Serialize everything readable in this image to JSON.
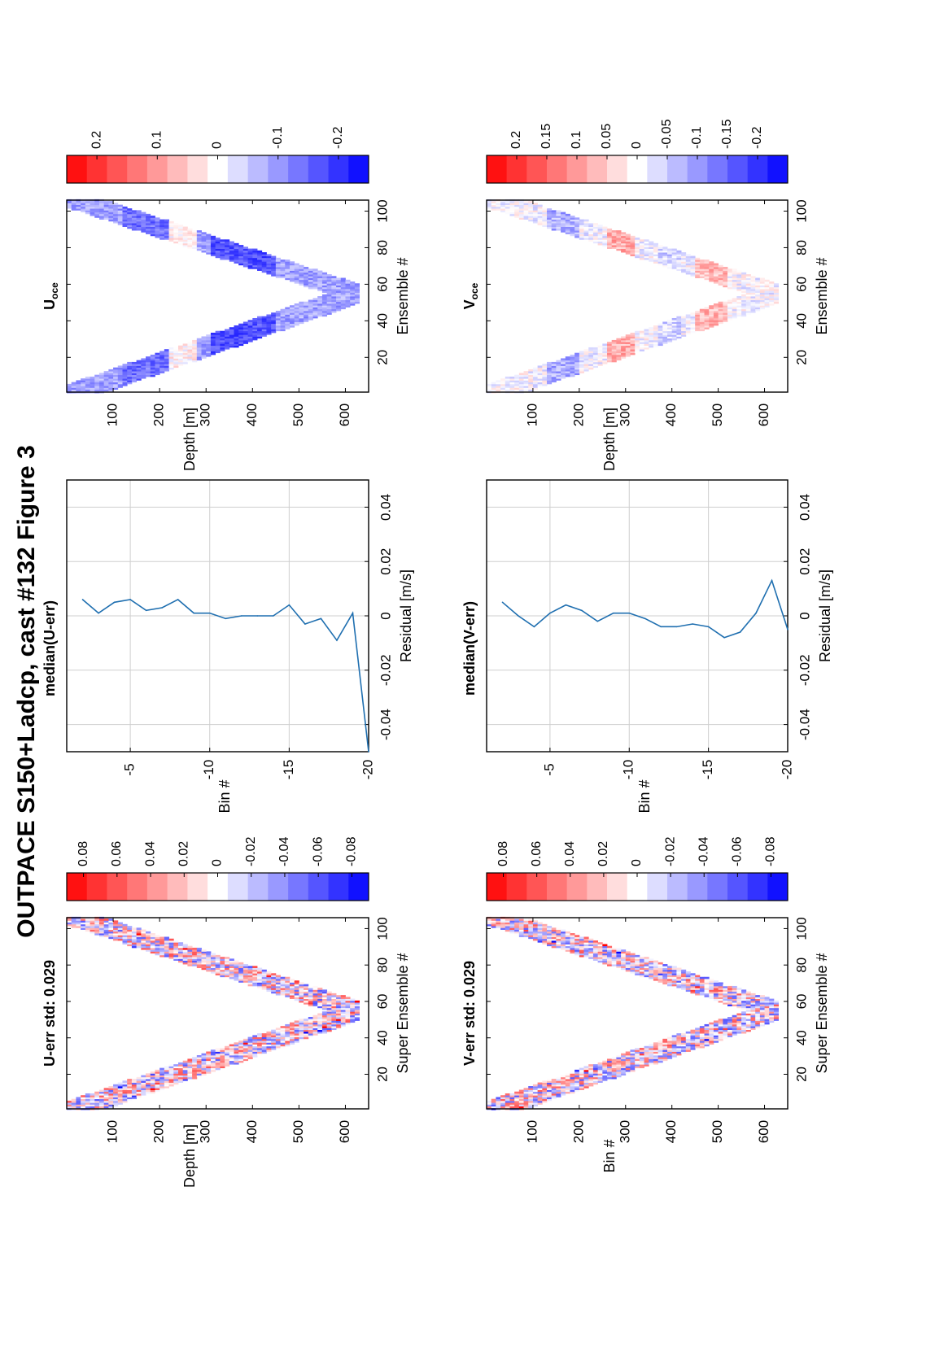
{
  "title": "OUTPACE S150+Ladcp, cast #132  Figure 3",
  "chart_data": [
    {
      "id": "uerr",
      "type": "heatmap",
      "title": "U-err std: 0.029",
      "xlabel": "Super Ensemble #",
      "ylabel": "Depth [m]",
      "xticks": [
        20,
        40,
        60,
        80,
        100
      ],
      "yticks": [
        100,
        200,
        300,
        400,
        500,
        600
      ],
      "xlim": [
        1,
        106
      ],
      "ylim": [
        0,
        650
      ],
      "profile": {
        "start_depth": 20,
        "max_depth": 625,
        "bottom_ensemble": 55,
        "band_width": 120
      },
      "seed": 11,
      "pattern": "noise"
    },
    {
      "id": "ucb",
      "type": "colorbar",
      "ticks": [
        "0.08",
        "0.06",
        "0.04",
        "0.02",
        "0",
        "-0.02",
        "-0.04",
        "-0.06",
        "-0.08"
      ],
      "range": [
        -0.09,
        0.09
      ]
    },
    {
      "id": "umed",
      "type": "line",
      "title": "median(U-err)",
      "xlabel": "Residual [m/s]",
      "ylabel": "Bin #",
      "xticks": [
        "-0.04",
        "-0.02",
        "0",
        "0.02",
        "0.04"
      ],
      "yticks": [
        "-5",
        "-10",
        "-15",
        "-20"
      ],
      "xlim": [
        -0.05,
        0.05
      ],
      "ylim": [
        -20,
        -1
      ],
      "x": [
        0.006,
        0.001,
        0.005,
        0.006,
        0.002,
        0.003,
        0.006,
        0.001,
        0.001,
        -0.001,
        0.0,
        0.0,
        0.0,
        0.004,
        -0.003,
        -0.001,
        -0.009,
        0.001,
        -0.05
      ],
      "y": [
        -2,
        -3,
        -4,
        -5,
        -6,
        -7,
        -8,
        -9,
        -10,
        -11,
        -12,
        -13,
        -14,
        -15,
        -16,
        -17,
        -18,
        -19,
        -20
      ]
    },
    {
      "id": "uoce",
      "type": "heatmap",
      "title": "U",
      "title_sub": "oce",
      "xlabel": "Ensemble #",
      "ylabel": "Depth [m]",
      "xticks": [
        20,
        40,
        60,
        80,
        100
      ],
      "yticks": [
        100,
        200,
        300,
        400,
        500,
        600
      ],
      "xlim": [
        1,
        106
      ],
      "ylim": [
        0,
        650
      ],
      "profile": {
        "start_depth": 20,
        "max_depth": 625,
        "bottom_ensemble": 55,
        "band_width": 120
      },
      "seed": 23,
      "pattern": "uoce"
    },
    {
      "id": "ocb1",
      "type": "colorbar",
      "ticks": [
        "0.2",
        "0.1",
        "0",
        "-0.1",
        "-0.2"
      ],
      "range": [
        -0.25,
        0.25
      ]
    },
    {
      "id": "verr",
      "type": "heatmap",
      "title": "V-err std: 0.029",
      "xlabel": "Super Ensemble #",
      "ylabel": "Bin #",
      "xticks": [
        20,
        40,
        60,
        80,
        100
      ],
      "yticks": [
        100,
        200,
        300,
        400,
        500,
        600
      ],
      "xlim": [
        1,
        106
      ],
      "ylim": [
        0,
        650
      ],
      "profile": {
        "start_depth": 20,
        "max_depth": 625,
        "bottom_ensemble": 55,
        "band_width": 120
      },
      "seed": 37,
      "pattern": "noise"
    },
    {
      "id": "vcb",
      "type": "colorbar",
      "ticks": [
        "0.08",
        "0.06",
        "0.04",
        "0.02",
        "0",
        "-0.02",
        "-0.04",
        "-0.06",
        "-0.08"
      ],
      "range": [
        -0.09,
        0.09
      ]
    },
    {
      "id": "vmed",
      "type": "line",
      "title": "median(V-err)",
      "xlabel": "Residual [m/s]",
      "ylabel": "Bin #",
      "xticks": [
        "-0.04",
        "-0.02",
        "0",
        "0.02",
        "0.04"
      ],
      "yticks": [
        "-5",
        "-10",
        "-15",
        "-20"
      ],
      "xlim": [
        -0.05,
        0.05
      ],
      "ylim": [
        -20,
        -1
      ],
      "x": [
        0.005,
        0.0,
        -0.004,
        0.001,
        0.004,
        0.002,
        -0.002,
        0.001,
        0.001,
        -0.001,
        -0.004,
        -0.004,
        -0.003,
        -0.004,
        -0.008,
        -0.006,
        0.001,
        0.013,
        -0.005
      ],
      "y": [
        -2,
        -3,
        -4,
        -5,
        -6,
        -7,
        -8,
        -9,
        -10,
        -11,
        -12,
        -13,
        -14,
        -15,
        -16,
        -17,
        -18,
        -19,
        -20
      ]
    },
    {
      "id": "voce",
      "type": "heatmap",
      "title": "V",
      "title_sub": "oce",
      "xlabel": "Ensemble #",
      "ylabel": "Depth [m]",
      "xticks": [
        20,
        40,
        60,
        80,
        100
      ],
      "yticks": [
        100,
        200,
        300,
        400,
        500,
        600
      ],
      "xlim": [
        1,
        106
      ],
      "ylim": [
        0,
        650
      ],
      "profile": {
        "start_depth": 20,
        "max_depth": 625,
        "bottom_ensemble": 55,
        "band_width": 120
      },
      "seed": 51,
      "pattern": "voce"
    },
    {
      "id": "ocb2",
      "type": "colorbar",
      "ticks": [
        "0.2",
        "0.15",
        "0.1",
        "0.05",
        "0",
        "-0.05",
        "-0.1",
        "-0.15",
        "-0.2"
      ],
      "range": [
        -0.25,
        0.25
      ]
    }
  ]
}
